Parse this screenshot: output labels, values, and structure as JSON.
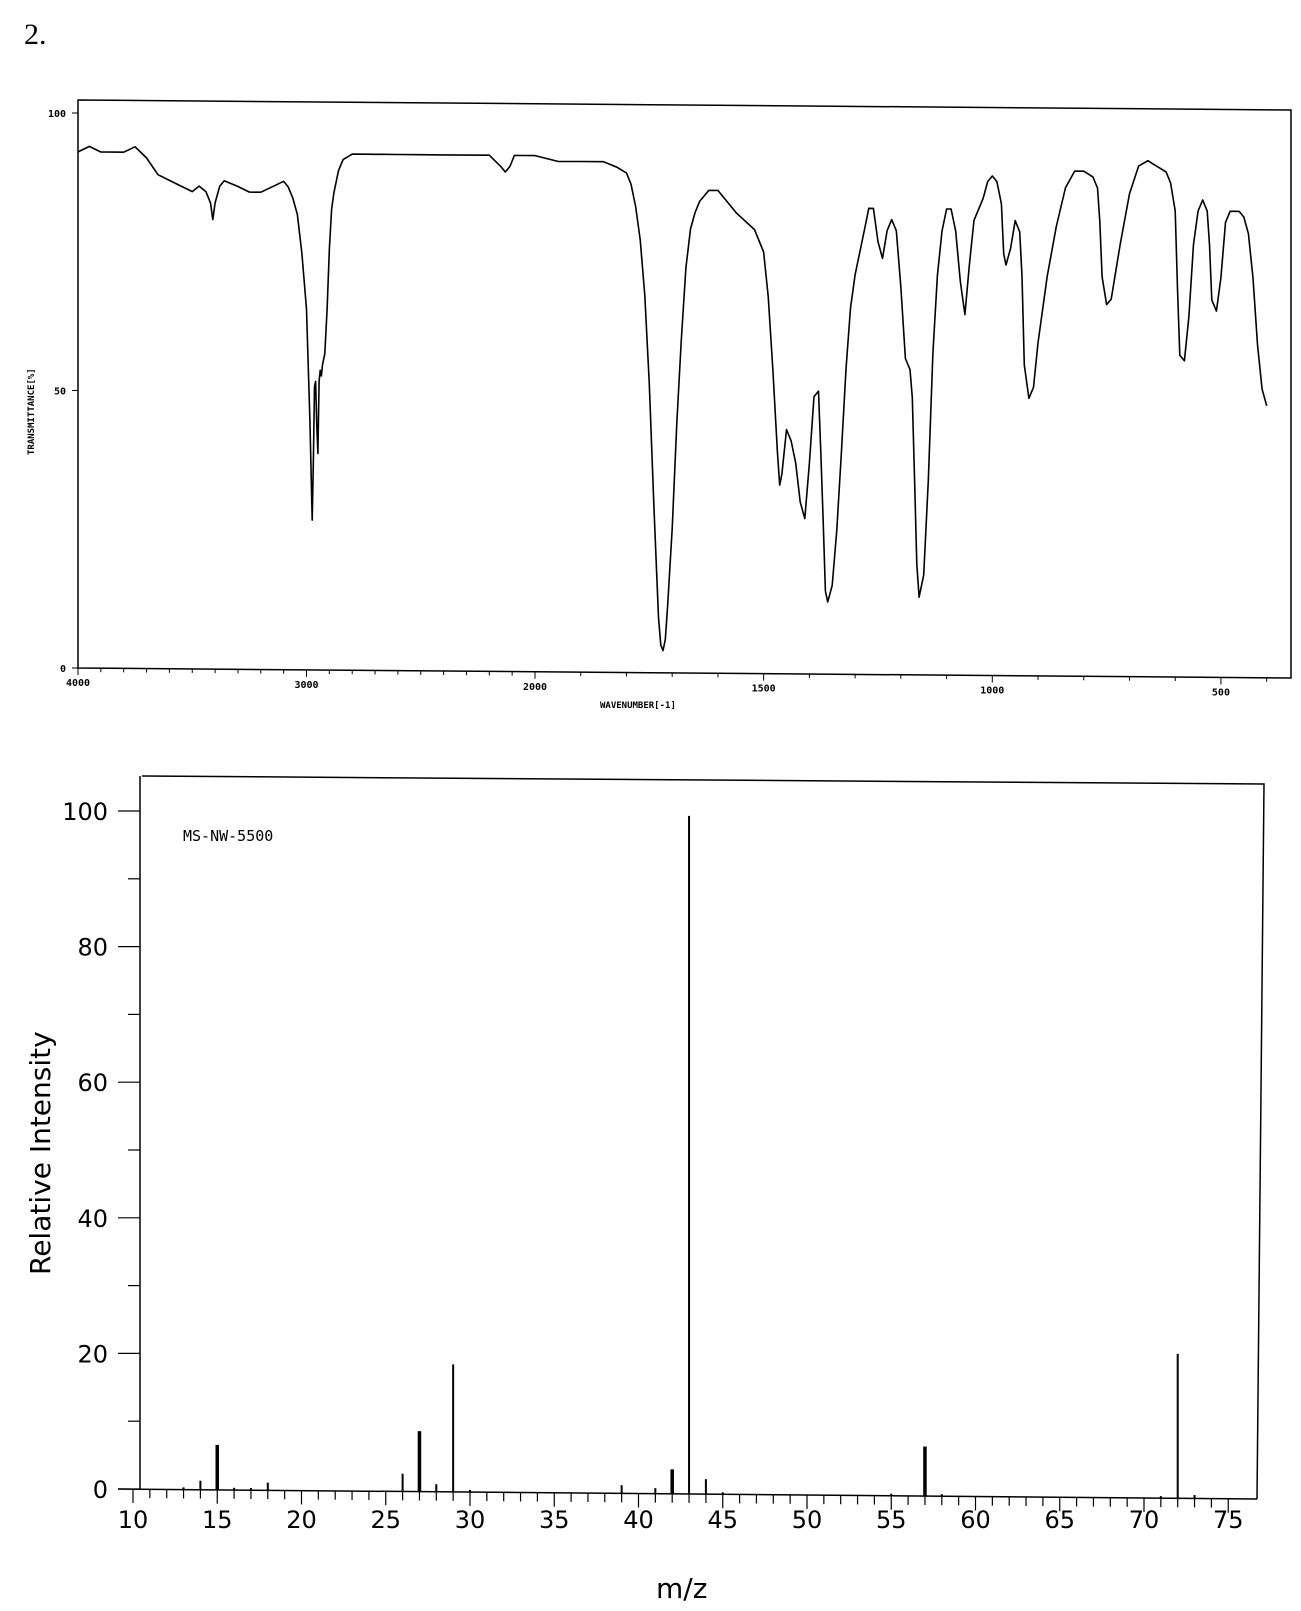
{
  "problem_number": "2.",
  "chart_data": [
    {
      "type": "line",
      "id": "ir",
      "xlabel": "WAVENUMBER[-1]",
      "ylabel": "TRANSMITTANCE[%]",
      "xlim": [
        4000,
        400
      ],
      "ylim": [
        0,
        100
      ],
      "x_ticks": [
        "4000",
        "3000",
        "2000",
        "1500",
        "1000",
        "500"
      ],
      "y_ticks": [
        "100",
        "50",
        "0"
      ],
      "series": [
        {
          "x": [
            4000,
            3950,
            3900,
            3850,
            3800,
            3750,
            3700,
            3650,
            3600,
            3550,
            3500,
            3470,
            3440,
            3420,
            3410,
            3400,
            3380,
            3360,
            3300,
            3250,
            3200,
            3150,
            3100,
            3080,
            3060,
            3040,
            3020,
            3000,
            2985,
            2975,
            2970,
            2965,
            2960,
            2955,
            2950,
            2945,
            2940,
            2935,
            2930,
            2920,
            2910,
            2900,
            2890,
            2880,
            2870,
            2860,
            2840,
            2800,
            2750,
            2700,
            2600,
            2500,
            2400,
            2300,
            2200,
            2150,
            2130,
            2110,
            2090,
            2050,
            2000,
            1950,
            1900,
            1850,
            1820,
            1800,
            1790,
            1780,
            1770,
            1760,
            1750,
            1740,
            1730,
            1725,
            1720,
            1715,
            1710,
            1700,
            1690,
            1680,
            1670,
            1660,
            1650,
            1640,
            1620,
            1600,
            1560,
            1520,
            1500,
            1490,
            1480,
            1470,
            1465,
            1460,
            1455,
            1450,
            1440,
            1430,
            1420,
            1410,
            1400,
            1390,
            1380,
            1375,
            1370,
            1365,
            1360,
            1350,
            1340,
            1330,
            1320,
            1310,
            1300,
            1290,
            1280,
            1270,
            1260,
            1250,
            1240,
            1230,
            1220,
            1210,
            1200,
            1190,
            1180,
            1175,
            1170,
            1165,
            1160,
            1150,
            1140,
            1130,
            1120,
            1110,
            1100,
            1090,
            1085,
            1080,
            1070,
            1060,
            1050,
            1040,
            1020,
            1010,
            1000,
            990,
            980,
            975,
            970,
            960,
            950,
            940,
            935,
            930,
            920,
            910,
            900,
            880,
            860,
            840,
            820,
            800,
            780,
            770,
            765,
            760,
            750,
            740,
            720,
            700,
            680,
            660,
            640,
            620,
            610,
            600,
            595,
            590,
            580,
            570,
            560,
            550,
            540,
            530,
            525,
            520,
            510,
            500,
            490,
            480,
            470,
            460,
            450,
            440,
            430,
            420,
            410,
            400
          ],
          "y": [
            93,
            94,
            93,
            93,
            93,
            94,
            92,
            89,
            88,
            87,
            86,
            87,
            86,
            84,
            81,
            84,
            87,
            88,
            87,
            86,
            86,
            87,
            88,
            87,
            85,
            82,
            75,
            65,
            45,
            27,
            38,
            51,
            52,
            44,
            39,
            52,
            54,
            53,
            55,
            57,
            65,
            76,
            83,
            86,
            88,
            90,
            92,
            93,
            93,
            93,
            93,
            93,
            93,
            93,
            93,
            91,
            90,
            91,
            93,
            93,
            93,
            92,
            92,
            92,
            91,
            90,
            88,
            84,
            78,
            68,
            52,
            30,
            10,
            5,
            4,
            6,
            12,
            26,
            45,
            60,
            73,
            80,
            83,
            85,
            87,
            87,
            83,
            80,
            76,
            68,
            55,
            40,
            34,
            36,
            40,
            44,
            42,
            38,
            31,
            28,
            38,
            50,
            51,
            40,
            28,
            15,
            13,
            16,
            26,
            40,
            55,
            66,
            72,
            76,
            80,
            84,
            84,
            78,
            75,
            80,
            82,
            80,
            70,
            57,
            55,
            50,
            35,
            20,
            14,
            18,
            35,
            58,
            72,
            80,
            84,
            84,
            82,
            80,
            71,
            65,
            74,
            82,
            86,
            89,
            90,
            89,
            85,
            76,
            74,
            77,
            82,
            80,
            72,
            56,
            50,
            52,
            60,
            72,
            81,
            88,
            91,
            91,
            90,
            88,
            82,
            72,
            67,
            68,
            78,
            87,
            92,
            93,
            92,
            91,
            89,
            84,
            70,
            58,
            57,
            65,
            78,
            84,
            86,
            84,
            78,
            68,
            66,
            72,
            82,
            84,
            84,
            84,
            83,
            80,
            72,
            60,
            52,
            49
          ]
        }
      ]
    },
    {
      "type": "bar",
      "id": "ms",
      "title": "MS-NW-5500",
      "xlabel": "m/z",
      "ylabel": "Relative Intensity",
      "xlim": [
        10,
        76
      ],
      "ylim": [
        0,
        105
      ],
      "x_ticks": [
        "10",
        "15",
        "20",
        "25",
        "30",
        "35",
        "40",
        "45",
        "50",
        "55",
        "60",
        "65",
        "70",
        "75"
      ],
      "y_ticks": [
        "0",
        "20",
        "40",
        "60",
        "80",
        "100"
      ],
      "series": [
        {
          "x": [
            13,
            14,
            15,
            16,
            17,
            18,
            26,
            27,
            28,
            29,
            30,
            39,
            41,
            42,
            43,
            44,
            45,
            55,
            57,
            58,
            71,
            72,
            73
          ],
          "y": [
            0.3,
            1.3,
            6.6,
            0.3,
            0.3,
            1.1,
            2.6,
            8.9,
            1.1,
            18.8,
            0.3,
            1.2,
            0.8,
            3.6,
            100,
            2.2,
            0.3,
            0.3,
            7.3,
            0.3,
            0.3,
            21.3,
            0.5
          ]
        }
      ]
    }
  ]
}
